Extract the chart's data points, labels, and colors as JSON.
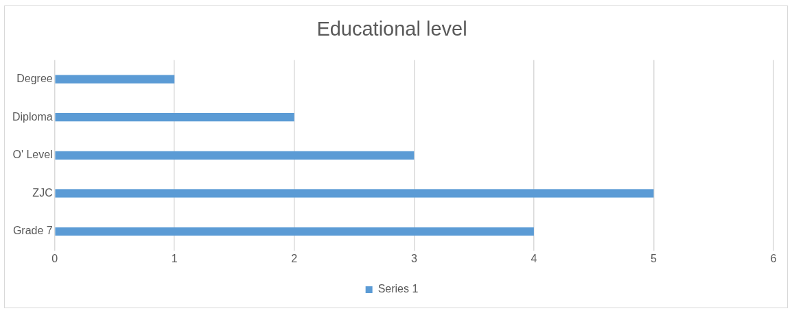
{
  "chart_data": {
    "type": "bar",
    "orientation": "horizontal",
    "title": "Educational level",
    "categories": [
      "Degree",
      "Diploma",
      "O' Level",
      "ZJC",
      "Grade 7"
    ],
    "series": [
      {
        "name": "Series 1",
        "color": "#5b9bd5",
        "values": [
          1,
          2,
          3,
          5,
          4
        ]
      }
    ],
    "xlim": [
      0,
      6
    ],
    "xticks": [
      0,
      1,
      2,
      3,
      4,
      5,
      6
    ],
    "grid": "x",
    "legend": "bottom"
  }
}
